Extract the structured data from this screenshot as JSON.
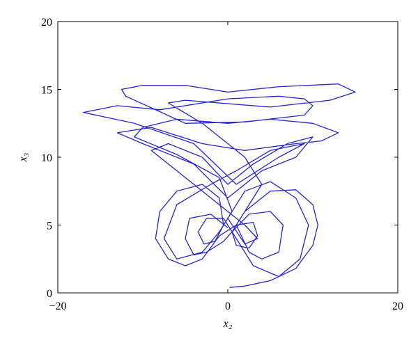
{
  "chart_data": {
    "type": "line",
    "xlabel": "x₂",
    "ylabel": "x₃",
    "xlim": [
      -20,
      20
    ],
    "ylim": [
      0,
      20
    ],
    "xticks": [
      {
        "value": -20,
        "label": "−20"
      },
      0,
      20
    ],
    "yticks": [
      0,
      5,
      10,
      15,
      20
    ],
    "grid": false,
    "series": [
      {
        "color": "#2323d2",
        "x": [
          0.2,
          2,
          5,
          8,
          10,
          10.6,
          10,
          8,
          5,
          2,
          0.5,
          1,
          2.5,
          3.5,
          3,
          1,
          -1,
          -3,
          -5,
          -7,
          -8.5,
          -8,
          -6,
          -3,
          -1,
          -0.5,
          -1.5,
          -2.8,
          -3.5,
          -2.5,
          -0.5,
          1,
          3,
          6,
          8.5,
          9.5,
          8,
          5,
          2,
          0,
          2,
          3.5,
          2,
          -2,
          -6,
          -9,
          -7,
          -3,
          0,
          3,
          7,
          10,
          8,
          4,
          0,
          -4,
          -10,
          -13,
          -9,
          -3,
          2,
          8,
          11,
          13,
          10,
          5,
          0,
          -6,
          -10,
          -11,
          -6,
          -1,
          0.5,
          -1,
          -3,
          -6,
          -7.5,
          -6,
          -2,
          1,
          5,
          9,
          6,
          1,
          -4,
          -11,
          -17,
          -13,
          -8,
          0,
          6,
          9,
          10,
          9,
          2,
          -5,
          -12,
          -12.5,
          -10,
          -5,
          0,
          6,
          13,
          15,
          12,
          5,
          -5,
          -7,
          -3,
          2,
          4,
          2,
          1,
          2.5,
          4,
          6,
          6.5,
          5,
          2.5,
          0.5,
          -0.5,
          -2.5,
          -4,
          -5,
          -4.5,
          -2,
          0
        ],
        "values": [
          0.4,
          0.5,
          0.9,
          1.8,
          3.5,
          5,
          6.5,
          7.6,
          7.5,
          6,
          4.5,
          3.5,
          3.3,
          4.2,
          5.2,
          5,
          4.2,
          2.5,
          2,
          2.5,
          4,
          6,
          7.5,
          8,
          7,
          5,
          3.8,
          3.6,
          4.5,
          5.5,
          5.5,
          4,
          2,
          1.2,
          2.5,
          5,
          7,
          8.2,
          7.5,
          5.5,
          3.6,
          4,
          5,
          7,
          9,
          10.5,
          11,
          10,
          8,
          9.5,
          11,
          11.5,
          10,
          9,
          7,
          9.5,
          11,
          11.8,
          12.2,
          11,
          10.5,
          11,
          11.2,
          11.8,
          12.5,
          12.8,
          12.5,
          12.8,
          12.2,
          11.5,
          10.2,
          8.5,
          6,
          4.5,
          3,
          2.5,
          4,
          6.5,
          8,
          9,
          10.5,
          11,
          10,
          8,
          11,
          12.5,
          13.3,
          13.8,
          13.5,
          14.3,
          14.5,
          14.3,
          13.8,
          13.1,
          12.6,
          12.5,
          14.5,
          15,
          15.3,
          15.3,
          14.8,
          15.2,
          15.4,
          14.8,
          14.2,
          13.7,
          14.2,
          14,
          12.5,
          10,
          8,
          6,
          5,
          3,
          2.5,
          3,
          5,
          6,
          5.8,
          4.5,
          3.8,
          3,
          2.8,
          4,
          5.5,
          5.8,
          4.8
        ]
      }
    ]
  }
}
